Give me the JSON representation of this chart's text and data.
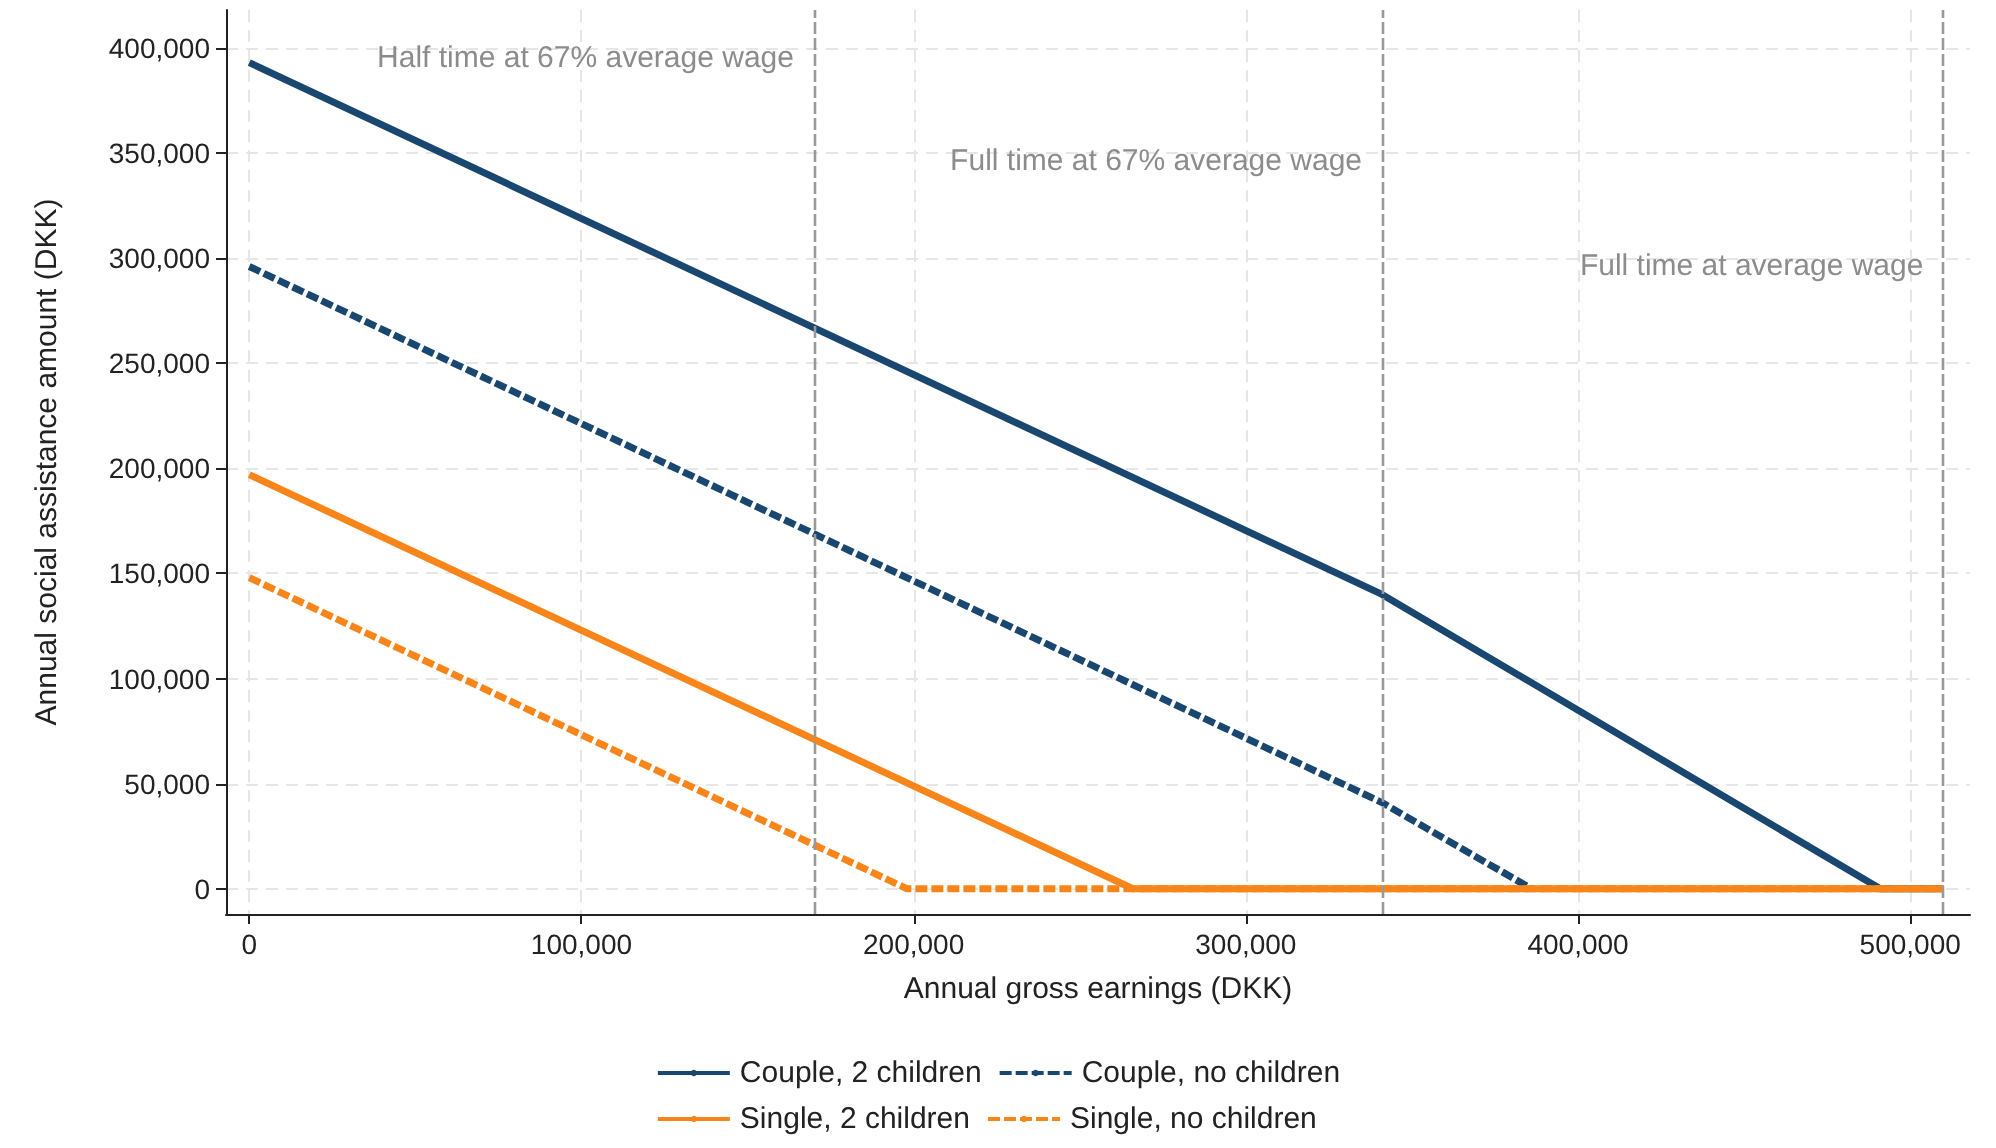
{
  "chart_data": {
    "type": "line",
    "xlabel": "Annual gross earnings (DKK)",
    "ylabel": "Annual social assistance amount (DKK)",
    "xlim": [
      -7000,
      518000
    ],
    "xticks": [
      {
        "value": 0,
        "label": "0"
      },
      {
        "value": 100000,
        "label": "100,000"
      },
      {
        "value": 200000,
        "label": "200,000"
      },
      {
        "value": 300000,
        "label": "300,000"
      },
      {
        "value": 400000,
        "label": "400,000"
      },
      {
        "value": 500000,
        "label": "500,000"
      }
    ],
    "ylim": [
      -12000,
      418000
    ],
    "yticks": [
      {
        "value": 0,
        "label": "0"
      },
      {
        "value": 50000,
        "label": "50,000"
      },
      {
        "value": 100000,
        "label": "100,000"
      },
      {
        "value": 150000,
        "label": "150,000"
      },
      {
        "value": 200000,
        "label": "200,000"
      },
      {
        "value": 250000,
        "label": "250,000"
      },
      {
        "value": 300000,
        "label": "300,000"
      },
      {
        "value": 350000,
        "label": "350,000"
      },
      {
        "value": 400000,
        "label": "400,000"
      }
    ],
    "series": [
      {
        "name": "Couple, 2 children",
        "color": "#1a476f",
        "line_style": "solid",
        "x": [
          0,
          341000,
          491000,
          510000
        ],
        "values": [
          393000,
          140000,
          0,
          0
        ]
      },
      {
        "name": "Couple, no children",
        "color": "#1a476f",
        "line_style": "dashed",
        "x": [
          0,
          341000,
          386000
        ],
        "values": [
          296000,
          41000,
          0
        ]
      },
      {
        "name": "Single, 2 children",
        "color": "#f8851a",
        "line_style": "solid",
        "x": [
          0,
          266000,
          510000
        ],
        "values": [
          197000,
          0,
          0
        ]
      },
      {
        "name": "Single, no children",
        "color": "#f8851a",
        "line_style": "dashed",
        "x": [
          0,
          198000,
          510000
        ],
        "values": [
          148000,
          0,
          0
        ]
      }
    ],
    "ref_lines": [
      {
        "axis": "x",
        "value": 170000,
        "color": "#999999",
        "line_style": "dashed"
      },
      {
        "axis": "x",
        "value": 341000,
        "color": "#999999",
        "line_style": "dashed"
      },
      {
        "axis": "x",
        "value": 510000,
        "color": "#999999",
        "line_style": "dashed"
      }
    ],
    "annotations": [
      {
        "text": "Half time at 67% average wage",
        "x": 170000,
        "y": 395000
      },
      {
        "text": "Full time at 67% average wage",
        "x": 341000,
        "y": 346000
      },
      {
        "text": "Full time at average wage",
        "x": 510000,
        "y": 296000
      }
    ],
    "grid": true,
    "legend": "bottom",
    "marker": "none"
  }
}
